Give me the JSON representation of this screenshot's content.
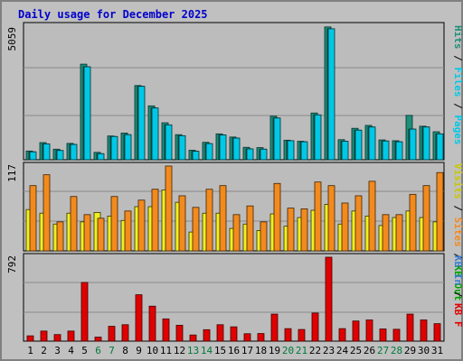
{
  "title": "Daily usage for December 2025",
  "colors": {
    "background": "#c0c0c0",
    "plot_bg": "#bcbcbc",
    "gridline": "#8a8a8a",
    "title": "#0000cc",
    "pages": "#1f8f78",
    "files": "#00c8e6",
    "sites": "#f0f020",
    "visits": "#f28a1e",
    "kbf": "#e00000",
    "weekday_label": "#000000",
    "weekend_label": "#007a3a"
  },
  "chart_data": [
    {
      "type": "bar",
      "panel": "hits",
      "ymax_label": "5059",
      "ylim": [
        0,
        5059
      ],
      "grid": true,
      "legend_position": "right",
      "categories": [
        "1",
        "2",
        "3",
        "4",
        "5",
        "6",
        "7",
        "8",
        "9",
        "10",
        "11",
        "12",
        "13",
        "14",
        "15",
        "16",
        "17",
        "18",
        "19",
        "20",
        "21",
        "22",
        "23",
        "24",
        "25",
        "26",
        "27",
        "28",
        "29",
        "30",
        "31"
      ],
      "series": [
        {
          "name": "Hits",
          "color": "#1f8f78",
          "values": [
            330,
            650,
            400,
            620,
            3620,
            280,
            900,
            1010,
            2810,
            2040,
            1400,
            950,
            360,
            660,
            980,
            860,
            470,
            460,
            1650,
            740,
            700,
            1770,
            5030,
            760,
            1190,
            1300,
            750,
            720,
            1680,
            1270,
            1060
          ]
        },
        {
          "name": "Files",
          "color": "#1f8f78",
          "values": [
            300,
            600,
            350,
            580,
            3520,
            230,
            880,
            950,
            2780,
            1960,
            1320,
            910,
            320,
            610,
            940,
            820,
            410,
            400,
            1580,
            720,
            680,
            1700,
            4960,
            700,
            1120,
            1240,
            710,
            680,
            1160,
            1240,
            980
          ]
        },
        {
          "name": "Pages",
          "color": "#00c8e6",
          "values": [
            300,
            600,
            350,
            580,
            3520,
            230,
            880,
            950,
            2780,
            1960,
            1320,
            910,
            320,
            610,
            940,
            820,
            410,
            400,
            1580,
            720,
            680,
            1700,
            4960,
            700,
            1120,
            1240,
            710,
            680,
            1160,
            1240,
            980
          ]
        }
      ],
      "legend": [
        "Pages",
        "Files",
        "Hits"
      ]
    },
    {
      "type": "bar",
      "panel": "visits",
      "ymax_label": "117",
      "ylim": [
        0,
        117
      ],
      "grid": true,
      "legend_position": "right",
      "categories": [
        "1",
        "2",
        "3",
        "4",
        "5",
        "6",
        "7",
        "8",
        "9",
        "10",
        "11",
        "12",
        "13",
        "14",
        "15",
        "16",
        "17",
        "18",
        "19",
        "20",
        "21",
        "22",
        "23",
        "24",
        "25",
        "26",
        "27",
        "28",
        "29",
        "30",
        "31"
      ],
      "series": [
        {
          "name": "Sites",
          "color": "#f0f020",
          "values": [
            57,
            52,
            37,
            52,
            40,
            53,
            48,
            42,
            61,
            61,
            84,
            67,
            26,
            52,
            52,
            31,
            37,
            28,
            51,
            34,
            46,
            56,
            64,
            37,
            55,
            48,
            35,
            46,
            55,
            46,
            40
          ]
        },
        {
          "name": "Visits",
          "color": "#f28a1e",
          "values": [
            90,
            105,
            40,
            75,
            50,
            45,
            75,
            55,
            70,
            85,
            117,
            76,
            60,
            85,
            90,
            50,
            62,
            40,
            93,
            59,
            58,
            95,
            90,
            66,
            76,
            96,
            50,
            50,
            78,
            90,
            108
          ]
        }
      ],
      "legend": [
        "Visits",
        "Sites",
        "KB Out"
      ]
    },
    {
      "type": "bar",
      "panel": "kbytes",
      "ymax_label": "792",
      "ylim": [
        0,
        792
      ],
      "grid": true,
      "legend_position": "right",
      "categories": [
        "1",
        "2",
        "3",
        "4",
        "5",
        "6",
        "7",
        "8",
        "9",
        "10",
        "11",
        "12",
        "13",
        "14",
        "15",
        "16",
        "17",
        "18",
        "19",
        "20",
        "21",
        "22",
        "23",
        "24",
        "25",
        "26",
        "27",
        "28",
        "29",
        "30",
        "31"
      ],
      "series": [
        {
          "name": "KB F",
          "color": "#e00000",
          "values": [
            50,
            95,
            62,
            95,
            554,
            38,
            140,
            155,
            438,
            330,
            210,
            150,
            58,
            108,
            155,
            135,
            70,
            72,
            255,
            118,
            110,
            265,
            792,
            118,
            190,
            200,
            115,
            112,
            255,
            200,
            165
          ]
        }
      ],
      "legend": [
        "KB In",
        "KB F"
      ]
    }
  ]
}
